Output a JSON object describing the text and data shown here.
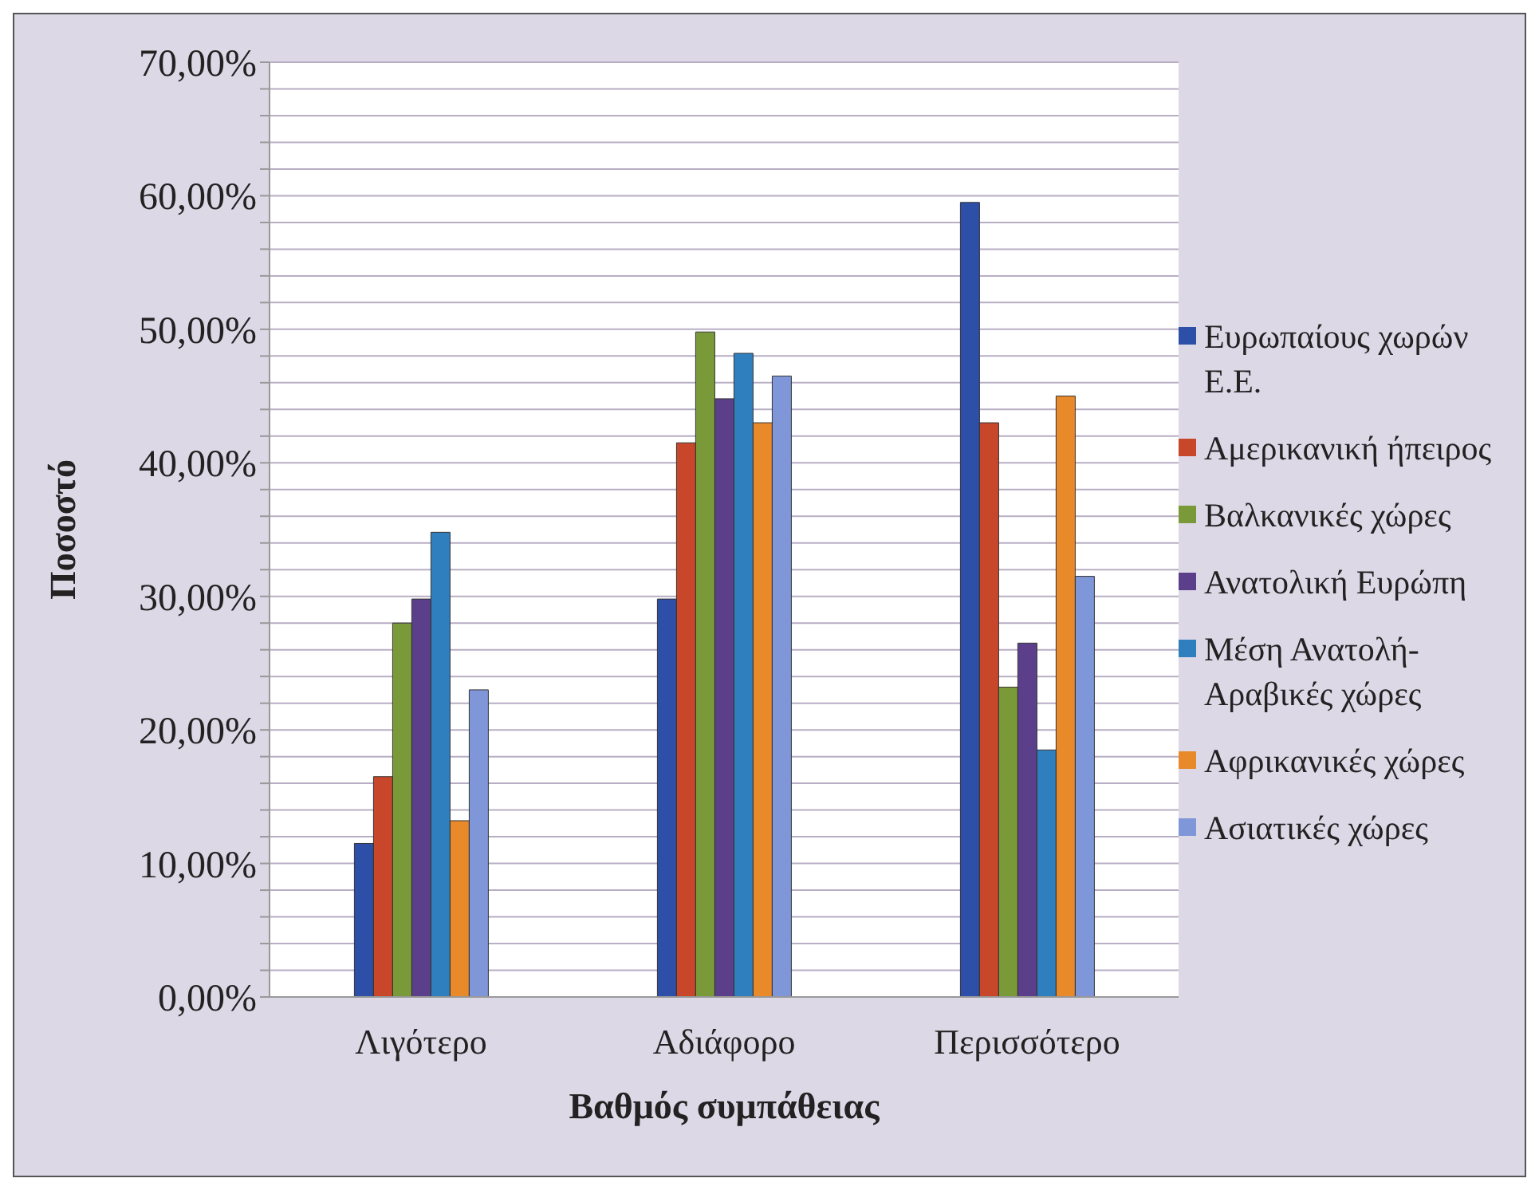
{
  "chart_data": {
    "type": "bar",
    "xlabel": "Βαθμός συμπάθειας",
    "ylabel": "Ποσοστό",
    "categories": [
      "Λιγότερο",
      "Αδιάφορο",
      "Περισσότερο"
    ],
    "series": [
      {
        "name": "Ευρωπαίους χωρών Ε.Ε.",
        "color": "#2e4fa8",
        "values": [
          11.5,
          29.8,
          59.5
        ]
      },
      {
        "name": "Αμερικανική ήπειρος",
        "color": "#c8472a",
        "values": [
          16.5,
          41.5,
          43
        ]
      },
      {
        "name": "Βαλκανικές χώρες",
        "color": "#7a9a3a",
        "values": [
          28,
          49.8,
          23.2
        ]
      },
      {
        "name": "Ανατολική Ευρώπη",
        "color": "#5c3f8a",
        "values": [
          29.8,
          44.8,
          26.5
        ]
      },
      {
        "name": "Μέση Ανατολή-Αραβικές χώρες",
        "color": "#2f7fbf",
        "values": [
          34.8,
          48.2,
          18.5
        ]
      },
      {
        "name": "Αφρικανικές χώρες",
        "color": "#e8892a",
        "values": [
          13.2,
          43,
          45
        ]
      },
      {
        "name": "Ασιατικές χώρες",
        "color": "#7f97d8",
        "values": [
          23,
          46.5,
          31.5
        ]
      }
    ],
    "ylim": [
      0,
      70
    ],
    "yticks": [
      {
        "value": 0,
        "label": "0,00%"
      },
      {
        "value": 2,
        "label": null
      },
      {
        "value": 4,
        "label": null
      },
      {
        "value": 6,
        "label": null
      },
      {
        "value": 8,
        "label": null
      },
      {
        "value": 10,
        "label": "10,00%"
      },
      {
        "value": 12,
        "label": null
      },
      {
        "value": 14,
        "label": null
      },
      {
        "value": 16,
        "label": null
      },
      {
        "value": 18,
        "label": null
      },
      {
        "value": 20,
        "label": "20,00%"
      },
      {
        "value": 22,
        "label": null
      },
      {
        "value": 24,
        "label": null
      },
      {
        "value": 26,
        "label": null
      },
      {
        "value": 28,
        "label": null
      },
      {
        "value": 30,
        "label": "30,00%"
      },
      {
        "value": 32,
        "label": null
      },
      {
        "value": 34,
        "label": null
      },
      {
        "value": 36,
        "label": null
      },
      {
        "value": 38,
        "label": null
      },
      {
        "value": 40,
        "label": "40,00%"
      },
      {
        "value": 42,
        "label": null
      },
      {
        "value": 44,
        "label": null
      },
      {
        "value": 46,
        "label": null
      },
      {
        "value": 48,
        "label": null
      },
      {
        "value": 50,
        "label": "50,00%"
      },
      {
        "value": 52,
        "label": null
      },
      {
        "value": 54,
        "label": null
      },
      {
        "value": 56,
        "label": null
      },
      {
        "value": 58,
        "label": null
      },
      {
        "value": 60,
        "label": "60,00%"
      },
      {
        "value": 62,
        "label": null
      },
      {
        "value": 64,
        "label": null
      },
      {
        "value": 66,
        "label": null
      },
      {
        "value": 68,
        "label": null
      },
      {
        "value": 70,
        "label": "70,00%"
      }
    ],
    "grid": "y",
    "legend": "right"
  }
}
